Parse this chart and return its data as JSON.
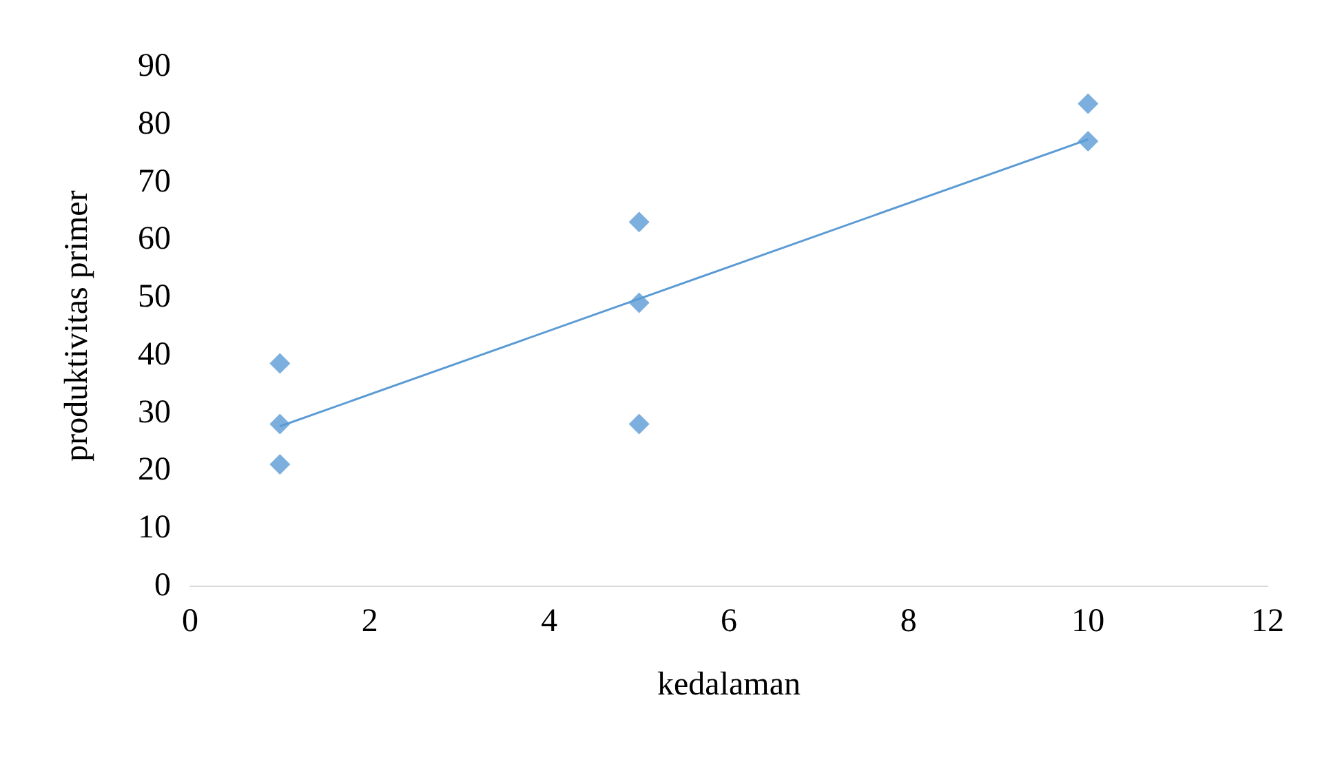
{
  "chart_data": {
    "type": "scatter",
    "xlabel": "kedalaman",
    "ylabel": "produktivitas primer",
    "marker": "diamond",
    "grid": false,
    "series": [
      {
        "color": "#5b9bd5",
        "x": [
          1,
          1,
          1,
          5,
          5,
          5,
          10,
          10
        ],
        "values": [
          38.5,
          28,
          21,
          63,
          49,
          28,
          83.5,
          77
        ]
      },
      {
        "type": "line",
        "color": "#5b9bd5",
        "marker": "none",
        "x": [
          1,
          10
        ],
        "values": [
          27.6,
          77.3
        ]
      }
    ],
    "xlim": [
      0,
      12
    ],
    "xticks": [
      0,
      2,
      4,
      6,
      8,
      10,
      12
    ],
    "ylim": [
      0,
      90
    ],
    "yticks": [
      0,
      10,
      20,
      30,
      40,
      50,
      60,
      70,
      80,
      90
    ]
  }
}
